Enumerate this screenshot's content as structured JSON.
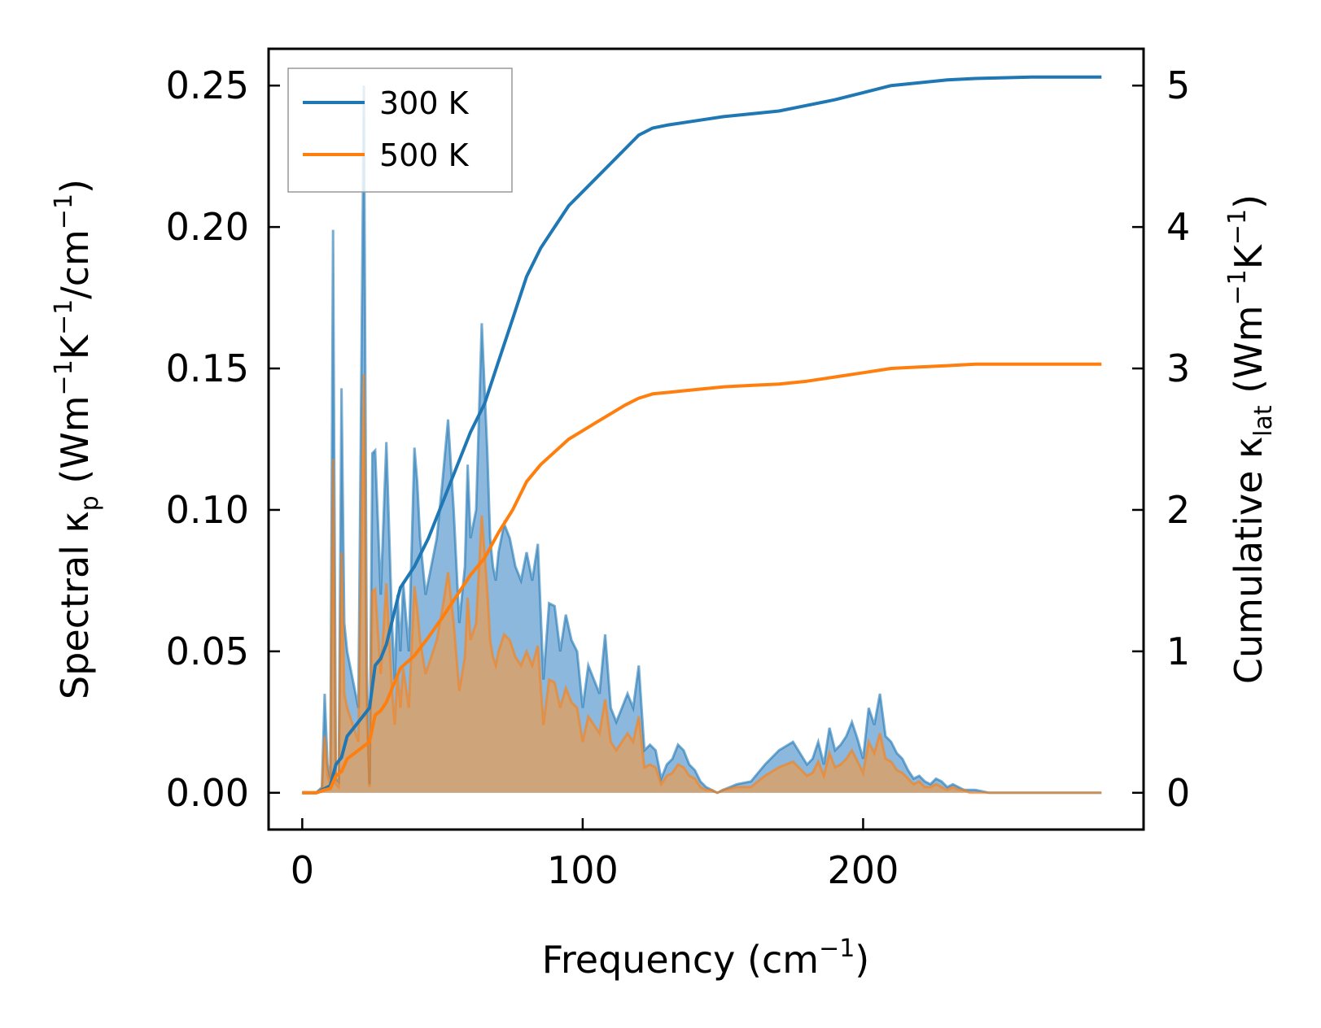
{
  "chart_data": {
    "type": "line",
    "title": "",
    "xlabel": {
      "prefix": "Frequency (cm",
      "sup": "−1",
      "suffix": ")"
    },
    "ylabel_left": {
      "p1": "Spectral κ",
      "sub1": "p",
      "p2": " (Wm",
      "sup1": "−1",
      "p3": "K",
      "sup2": "−1",
      "p4": "/cm",
      "sup3": "−1",
      "p5": ")"
    },
    "ylabel_right": {
      "p1": "Cumulative κ",
      "sub1": "lat",
      "p2": " (Wm",
      "sup1": "−1",
      "p3": "K",
      "sup2": "−1",
      "p4": ")"
    },
    "xlim": [
      -12,
      300
    ],
    "ylim_left": [
      -0.013,
      0.263
    ],
    "ylim_right": [
      -0.26,
      5.26
    ],
    "xticks": [
      0,
      100,
      200
    ],
    "xtick_labels": [
      "0",
      "100",
      "200"
    ],
    "yticks_left": [
      0.0,
      0.05,
      0.1,
      0.15,
      0.2,
      0.25
    ],
    "ytick_labels_left": [
      "0.00",
      "0.05",
      "0.10",
      "0.15",
      "0.20",
      "0.25"
    ],
    "yticks_right": [
      0,
      1,
      2,
      3,
      4,
      5
    ],
    "ytick_labels_right": [
      "0",
      "1",
      "2",
      "3",
      "4",
      "5"
    ],
    "legend": {
      "position": "upper-left",
      "entries": [
        "300 K",
        "500 K"
      ]
    },
    "colors": {
      "series_300": "#1f77b4",
      "series_500": "#ff7f0e",
      "fill_300": "#7fb0d9",
      "fill_500": "#d9a06a"
    },
    "series": [
      {
        "name": "300 K",
        "axis": "right",
        "kind": "cumulative",
        "x": [
          0,
          5,
          8,
          10,
          12,
          14,
          16,
          18,
          20,
          22,
          24,
          26,
          28,
          30,
          35,
          40,
          45,
          50,
          55,
          60,
          65,
          70,
          75,
          80,
          85,
          90,
          95,
          100,
          105,
          110,
          115,
          120,
          125,
          130,
          140,
          150,
          160,
          170,
          180,
          190,
          200,
          210,
          220,
          230,
          240,
          260,
          285
        ],
        "y": [
          0,
          0,
          0.03,
          0.05,
          0.2,
          0.25,
          0.4,
          0.45,
          0.5,
          0.55,
          0.6,
          0.9,
          0.95,
          1.05,
          1.45,
          1.6,
          1.8,
          2.05,
          2.3,
          2.55,
          2.75,
          3.05,
          3.35,
          3.65,
          3.85,
          4.0,
          4.15,
          4.25,
          4.35,
          4.45,
          4.55,
          4.65,
          4.7,
          4.72,
          4.75,
          4.78,
          4.8,
          4.82,
          4.86,
          4.9,
          4.95,
          5.0,
          5.02,
          5.04,
          5.05,
          5.06,
          5.06
        ]
      },
      {
        "name": "500 K",
        "axis": "right",
        "kind": "cumulative",
        "x": [
          0,
          5,
          8,
          10,
          12,
          14,
          16,
          18,
          20,
          22,
          24,
          26,
          28,
          30,
          35,
          40,
          45,
          50,
          55,
          60,
          65,
          70,
          75,
          80,
          85,
          90,
          95,
          100,
          105,
          110,
          115,
          120,
          125,
          130,
          140,
          150,
          160,
          170,
          180,
          190,
          200,
          210,
          220,
          230,
          240,
          260,
          285
        ],
        "y": [
          0,
          0,
          0.02,
          0.03,
          0.12,
          0.15,
          0.24,
          0.27,
          0.3,
          0.33,
          0.36,
          0.55,
          0.58,
          0.64,
          0.88,
          0.97,
          1.1,
          1.24,
          1.39,
          1.54,
          1.66,
          1.84,
          2.0,
          2.2,
          2.32,
          2.41,
          2.5,
          2.56,
          2.62,
          2.68,
          2.74,
          2.79,
          2.82,
          2.83,
          2.85,
          2.87,
          2.88,
          2.89,
          2.91,
          2.94,
          2.97,
          3.0,
          3.01,
          3.02,
          3.03,
          3.03,
          3.03
        ]
      },
      {
        "name": "300 K spectral",
        "axis": "left",
        "kind": "spectral",
        "x": [
          0,
          5,
          7,
          8,
          9,
          10,
          11,
          12,
          13,
          14,
          15,
          16,
          18,
          20,
          22,
          23,
          24,
          25,
          26,
          28,
          30,
          32,
          33,
          34,
          35,
          36,
          38,
          40,
          41,
          42,
          44,
          46,
          48,
          50,
          52,
          54,
          56,
          57,
          58,
          59,
          60,
          62,
          64,
          66,
          67,
          68,
          69,
          70,
          72,
          74,
          76,
          78,
          80,
          82,
          84,
          86,
          88,
          90,
          92,
          94,
          96,
          98,
          100,
          102,
          104,
          106,
          108,
          110,
          112,
          114,
          116,
          118,
          120,
          122,
          124,
          126,
          128,
          130,
          132,
          134,
          136,
          138,
          140,
          142,
          144,
          146,
          148,
          150,
          155,
          160,
          165,
          170,
          175,
          180,
          182,
          184,
          186,
          188,
          190,
          192,
          194,
          196,
          198,
          200,
          202,
          204,
          206,
          208,
          210,
          212,
          214,
          216,
          218,
          220,
          222,
          224,
          226,
          228,
          230,
          232,
          234,
          236,
          238,
          240,
          245,
          250,
          260,
          270,
          285
        ],
        "y": [
          0,
          0,
          0.002,
          0.035,
          0.01,
          0.005,
          0.199,
          0.005,
          0.004,
          0.143,
          0.06,
          0.05,
          0.04,
          0.03,
          0.25,
          0.045,
          0.003,
          0.12,
          0.121,
          0.07,
          0.124,
          0.06,
          0.04,
          0.07,
          0.05,
          0.074,
          0.05,
          0.122,
          0.11,
          0.09,
          0.07,
          0.08,
          0.09,
          0.11,
          0.132,
          0.1,
          0.06,
          0.07,
          0.08,
          0.116,
          0.09,
          0.1,
          0.166,
          0.12,
          0.09,
          0.08,
          0.075,
          0.085,
          0.095,
          0.09,
          0.08,
          0.075,
          0.085,
          0.075,
          0.088,
          0.04,
          0.067,
          0.066,
          0.05,
          0.063,
          0.054,
          0.05,
          0.03,
          0.045,
          0.04,
          0.035,
          0.056,
          0.03,
          0.025,
          0.03,
          0.035,
          0.03,
          0.045,
          0.015,
          0.017,
          0.015,
          0.005,
          0.01,
          0.012,
          0.017,
          0.015,
          0.01,
          0.008,
          0.004,
          0.002,
          0.001,
          0,
          0.001,
          0.003,
          0.004,
          0.01,
          0.015,
          0.018,
          0.01,
          0.012,
          0.018,
          0.01,
          0.023,
          0.015,
          0.017,
          0.02,
          0.025,
          0.019,
          0.012,
          0.03,
          0.024,
          0.035,
          0.02,
          0.018,
          0.014,
          0.012,
          0.008,
          0.005,
          0.006,
          0.004,
          0.003,
          0.005,
          0.004,
          0.002,
          0.003,
          0.002,
          0.001,
          0.001,
          0.001,
          0,
          0,
          0,
          0,
          0
        ]
      },
      {
        "name": "500 K spectral",
        "axis": "left",
        "kind": "spectral",
        "x": [
          0,
          5,
          7,
          8,
          9,
          10,
          11,
          12,
          13,
          14,
          15,
          16,
          18,
          20,
          22,
          23,
          24,
          25,
          26,
          28,
          30,
          32,
          33,
          34,
          35,
          36,
          38,
          40,
          41,
          42,
          44,
          46,
          48,
          50,
          52,
          54,
          56,
          57,
          58,
          59,
          60,
          62,
          64,
          66,
          67,
          68,
          69,
          70,
          72,
          74,
          76,
          78,
          80,
          82,
          84,
          86,
          88,
          90,
          92,
          94,
          96,
          98,
          100,
          102,
          104,
          106,
          108,
          110,
          112,
          114,
          116,
          118,
          120,
          122,
          124,
          126,
          128,
          130,
          132,
          134,
          136,
          138,
          140,
          142,
          144,
          146,
          148,
          150,
          155,
          160,
          165,
          170,
          175,
          180,
          182,
          184,
          186,
          188,
          190,
          192,
          194,
          196,
          198,
          200,
          202,
          204,
          206,
          208,
          210,
          212,
          214,
          216,
          218,
          220,
          222,
          224,
          226,
          228,
          230,
          232,
          234,
          236,
          238,
          240,
          245,
          250,
          260,
          270,
          285
        ],
        "y": [
          0,
          0,
          0.001,
          0.02,
          0.006,
          0.003,
          0.118,
          0.003,
          0.002,
          0.085,
          0.035,
          0.03,
          0.024,
          0.018,
          0.148,
          0.027,
          0.002,
          0.071,
          0.072,
          0.042,
          0.074,
          0.036,
          0.024,
          0.042,
          0.03,
          0.044,
          0.03,
          0.073,
          0.065,
          0.054,
          0.042,
          0.048,
          0.054,
          0.065,
          0.078,
          0.06,
          0.036,
          0.042,
          0.048,
          0.069,
          0.054,
          0.06,
          0.098,
          0.071,
          0.054,
          0.048,
          0.045,
          0.05,
          0.056,
          0.054,
          0.048,
          0.045,
          0.05,
          0.045,
          0.052,
          0.024,
          0.04,
          0.039,
          0.03,
          0.037,
          0.032,
          0.03,
          0.018,
          0.027,
          0.024,
          0.021,
          0.033,
          0.018,
          0.015,
          0.018,
          0.021,
          0.018,
          0.027,
          0.009,
          0.01,
          0.009,
          0.003,
          0.006,
          0.007,
          0.01,
          0.009,
          0.006,
          0.005,
          0.002,
          0.001,
          0.001,
          0,
          0.001,
          0.002,
          0.002,
          0.006,
          0.009,
          0.011,
          0.006,
          0.007,
          0.011,
          0.006,
          0.014,
          0.009,
          0.01,
          0.012,
          0.015,
          0.011,
          0.007,
          0.018,
          0.014,
          0.021,
          0.012,
          0.011,
          0.008,
          0.007,
          0.005,
          0.003,
          0.004,
          0.002,
          0.002,
          0.003,
          0.002,
          0.001,
          0.002,
          0.001,
          0.001,
          0,
          0,
          0,
          0,
          0,
          0,
          0
        ]
      }
    ]
  }
}
